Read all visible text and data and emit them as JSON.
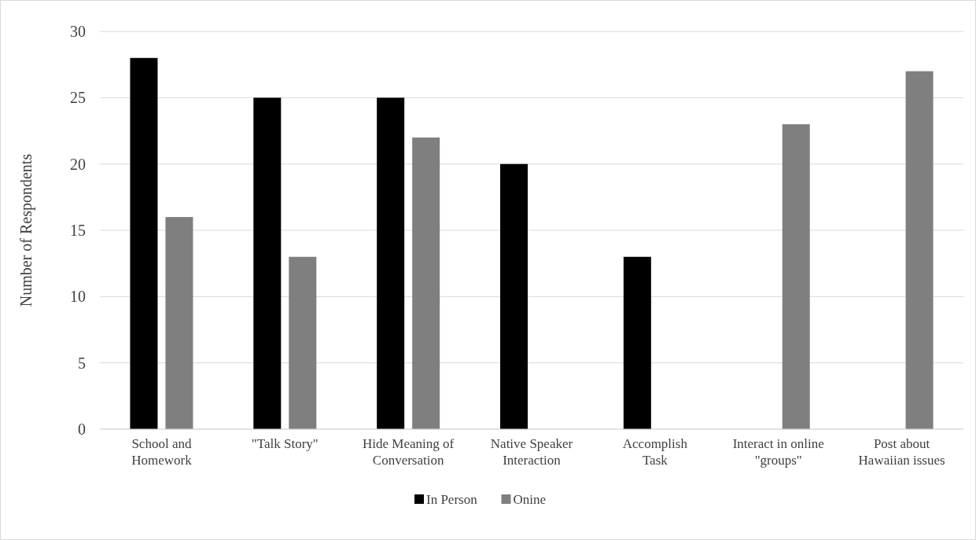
{
  "chart_data": {
    "type": "bar",
    "ylabel": "Number of Respondents",
    "categories": [
      "School and Homework",
      "\"Talk Story\"",
      "Hide Meaning of Conversation",
      "Native Speaker Interaction",
      "Accomplish Task",
      "Interact in online \"groups\"",
      "Post about Hawaiian issues"
    ],
    "series": [
      {
        "name": "In Person",
        "color": "#000000",
        "values": [
          28,
          25,
          25,
          20,
          13,
          null,
          null
        ]
      },
      {
        "name": "Onine",
        "color": "#7f7f7f",
        "values": [
          16,
          13,
          22,
          null,
          null,
          23,
          27
        ]
      }
    ],
    "ylim": [
      0,
      30
    ],
    "yticks": [
      0,
      5,
      10,
      15,
      20,
      25,
      30
    ],
    "grid": "y",
    "legend": "bottom"
  }
}
